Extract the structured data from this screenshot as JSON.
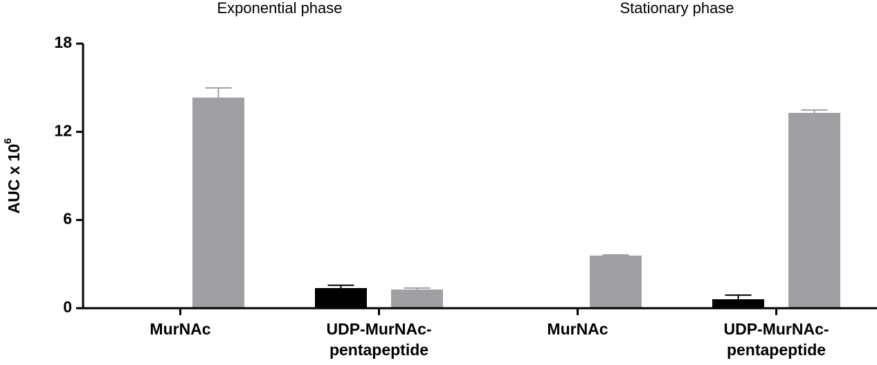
{
  "chart_data": {
    "type": "bar",
    "group_labels": [
      "Exponential phase",
      "Stationary phase"
    ],
    "ylabel": "AUC x 10",
    "ylabel_superscript": "6",
    "categories": [
      [
        "MurNAc"
      ],
      [
        "UDP-MurNAc-",
        "pentapeptide"
      ],
      [
        "MurNAc"
      ],
      [
        "UDP-MurNAc-",
        "pentapeptide"
      ]
    ],
    "series": [
      {
        "color": "#000000",
        "values": [
          0,
          1.37,
          0,
          0.61
        ],
        "errors": [
          0,
          0.19,
          0,
          0.28
        ]
      },
      {
        "color": "#a09fa4",
        "values": [
          14.33,
          1.27,
          3.58,
          13.29
        ],
        "errors": [
          0.66,
          0.1,
          0.05,
          0.19
        ]
      }
    ],
    "ylim": [
      0,
      18
    ],
    "yticks": [
      0,
      6,
      12,
      18
    ]
  }
}
